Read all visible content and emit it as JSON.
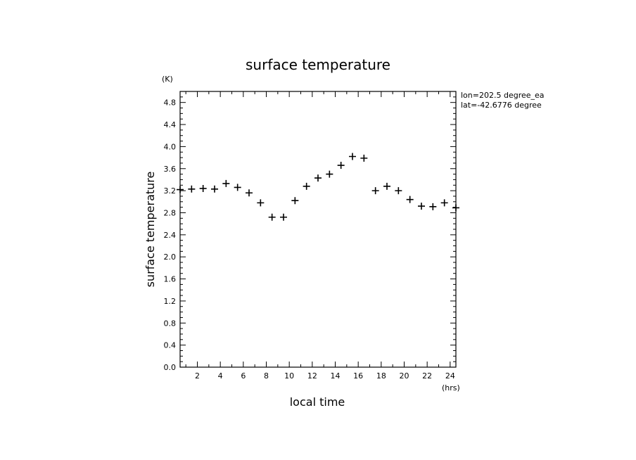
{
  "chart_data": {
    "type": "scatter",
    "title": "surface temperature",
    "xlabel": "local time",
    "ylabel": "surface temperature",
    "x_unit": "(hrs)",
    "y_unit": "(K)",
    "xlim": [
      0.5,
      24.5
    ],
    "ylim": [
      0.0,
      5.0
    ],
    "xticks": [
      2,
      4,
      6,
      8,
      10,
      12,
      14,
      16,
      18,
      20,
      22,
      24
    ],
    "xtick_labels": [
      "2",
      "4",
      "6",
      "8",
      "10",
      "12",
      "14",
      "16",
      "18",
      "20",
      "22",
      "24"
    ],
    "yticks": [
      0.0,
      0.4,
      0.8,
      1.2,
      1.6,
      2.0,
      2.4,
      2.8,
      3.2,
      3.6,
      4.0,
      4.4,
      4.8
    ],
    "ytick_labels": [
      "0.0",
      "0.4",
      "0.8",
      "1.2",
      "1.6",
      "2.0",
      "2.4",
      "2.8",
      "3.2",
      "3.6",
      "4.0",
      "4.4",
      "4.8"
    ],
    "grid": false,
    "marker": "plus",
    "annotations": [
      "lon=202.5 degree_ea",
      "lat=-42.6776 degree"
    ],
    "series": [
      {
        "x": [
          0.5,
          1.5,
          2.5,
          3.5,
          4.5,
          5.5,
          6.5,
          7.5,
          8.5,
          9.5,
          10.5,
          11.5,
          12.5,
          13.5,
          14.5,
          15.5,
          16.5,
          17.5,
          18.5,
          19.5,
          20.5,
          21.5,
          22.5,
          23.5,
          24.5
        ],
        "y": [
          3.22,
          3.23,
          3.24,
          3.23,
          3.33,
          3.26,
          3.16,
          2.98,
          2.72,
          2.72,
          3.02,
          3.28,
          3.43,
          3.5,
          3.66,
          3.82,
          3.79,
          3.2,
          3.28,
          3.2,
          3.04,
          2.92,
          2.91,
          2.98,
          2.89
        ]
      }
    ]
  }
}
